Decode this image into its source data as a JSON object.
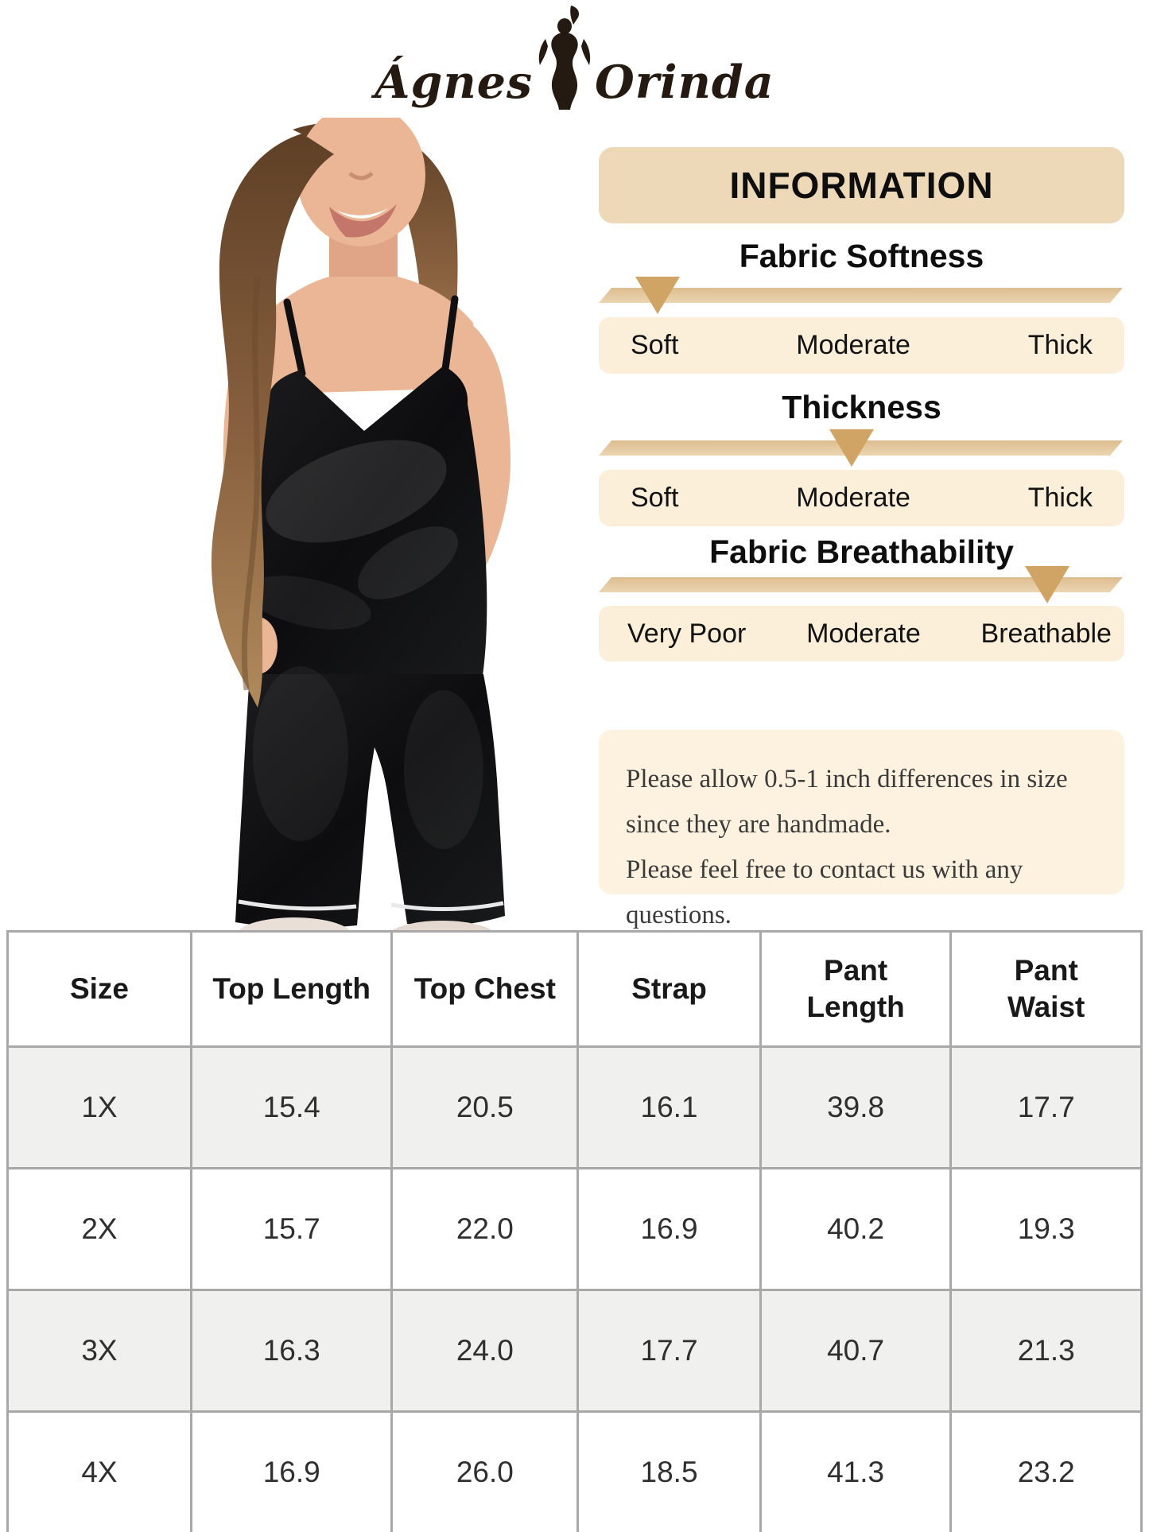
{
  "brand": {
    "name_part1": "Ágnes",
    "name_part2": "Orinda",
    "logo_icon": "woman-silhouette",
    "logo_color": "#241a12"
  },
  "product_photo": {
    "description": "Plus-size model with long wavy brown hair wearing a black satin cami pajama top with thin straps and matching black satin wide-leg pants with white piped hems, beige fluffy slippers, one hand in pocket"
  },
  "info": {
    "title": "INFORMATION",
    "scales": [
      {
        "heading": "Fabric Softness",
        "labels": [
          "Soft",
          "Moderate",
          "Thick"
        ],
        "indicator": "Soft",
        "indicator_left_pct": 11.2
      },
      {
        "heading": "Thickness",
        "labels": [
          "Soft",
          "Moderate",
          "Thick"
        ],
        "indicator": "Moderate",
        "indicator_left_pct": 48.1
      },
      {
        "heading": "Fabric Breathability",
        "labels": [
          "Very Poor",
          "Moderate",
          "Breathable"
        ],
        "indicator": "Breathable",
        "indicator_left_pct": 85.3
      }
    ],
    "note_lines": [
      "Please allow 0.5-1 inch differences in size",
      "since they are handmade.",
      "Please feel free to contact us with any questions."
    ]
  },
  "size_table": {
    "columns": [
      "Size",
      "Top Length",
      "Top Chest",
      "Strap",
      "Pant\nLength",
      "Pant\nWaist"
    ],
    "rows": [
      [
        "1X",
        "15.4",
        "20.5",
        "16.1",
        "39.8",
        "17.7"
      ],
      [
        "2X",
        "15.7",
        "22.0",
        "16.9",
        "40.2",
        "19.3"
      ],
      [
        "3X",
        "16.3",
        "24.0",
        "17.7",
        "40.7",
        "21.3"
      ],
      [
        "4X",
        "16.9",
        "26.0",
        "18.5",
        "41.3",
        "23.2"
      ]
    ]
  },
  "colors": {
    "title_box_bg": "#edd8b7",
    "label_row_bg": "#fcefd9",
    "bar_top": "#ddbd8f",
    "bar_bottom": "#ecd5b2",
    "indicator_triangle": "#cfa464",
    "note_box_bg": "#fdf2df",
    "table_alt_row_bg": "#f0f0ef",
    "table_border": "#a8a8a8",
    "logo_ink": "#241a12"
  }
}
